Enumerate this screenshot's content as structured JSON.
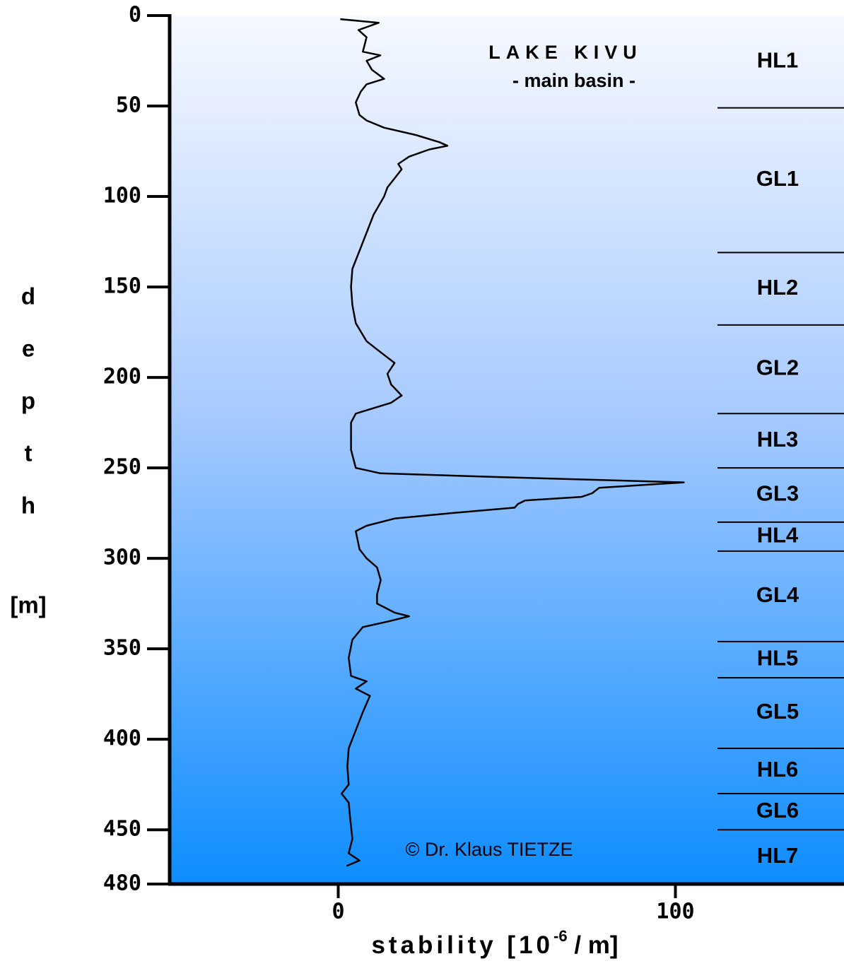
{
  "chart_data": {
    "type": "line",
    "title": "LAKE KIVU",
    "subtitle": "- main basin -",
    "copyright": "© Dr. Klaus TIETZE",
    "y_label": [
      "d",
      "e",
      "p",
      "t",
      "h",
      "[m]"
    ],
    "x_label": {
      "text": "stability [10",
      "sup": "-6",
      "tail": " / m]"
    },
    "ylim": [
      0,
      480
    ],
    "yticks": [
      0,
      50,
      100,
      150,
      200,
      250,
      300,
      350,
      400,
      450,
      480
    ],
    "xlim": [
      -50,
      150
    ],
    "xticks": [
      0,
      100
    ],
    "y_inverted": true,
    "color": "#000000",
    "y": [
      2,
      4,
      8,
      12,
      20,
      22,
      25,
      30,
      35,
      38,
      42,
      48,
      55,
      58,
      62,
      66,
      70,
      72,
      74,
      78,
      82,
      85,
      90,
      95,
      100,
      110,
      120,
      130,
      140,
      150,
      160,
      170,
      180,
      186,
      192,
      198,
      204,
      210,
      214,
      220,
      225,
      240,
      250,
      253,
      255,
      258,
      261,
      264,
      266,
      268,
      270,
      272,
      275,
      278,
      282,
      285,
      295,
      300,
      305,
      312,
      320,
      325,
      330,
      332,
      335,
      338,
      345,
      355,
      365,
      368,
      372,
      376,
      385,
      395,
      405,
      415,
      425,
      430,
      435,
      445,
      455,
      463,
      467,
      470
    ],
    "values": [
      0.6,
      12,
      6,
      8.4,
      7.3,
      12.5,
      8.4,
      10,
      13.6,
      8.4,
      6.7,
      5.2,
      6.3,
      8.4,
      13.6,
      23,
      30,
      32.4,
      27,
      21,
      17.8,
      18.8,
      16.7,
      14.6,
      13.6,
      10.5,
      8.4,
      6.3,
      4.2,
      3.8,
      4.2,
      5.2,
      8.4,
      12.5,
      16.7,
      14.6,
      15.7,
      18.8,
      15.7,
      5.2,
      3.8,
      3.8,
      5.2,
      12.5,
      46,
      102.5,
      77.4,
      75.3,
      72.2,
      55.4,
      53.3,
      52.3,
      33.5,
      16.7,
      8.4,
      5.2,
      6.3,
      8.4,
      11.5,
      12.6,
      11.5,
      11.5,
      16.7,
      21,
      14.6,
      7.3,
      4.2,
      3.1,
      3.8,
      8.4,
      5.2,
      9.4,
      7.3,
      5.2,
      3.1,
      2.7,
      3.1,
      1,
      3.1,
      3.6,
      4.2,
      3.1,
      6.3,
      2.5
    ],
    "layers": [
      "HL1",
      "GL1",
      "HL2",
      "GL2",
      "HL3",
      "GL3",
      "HL4",
      "GL4",
      "HL5",
      "GL5",
      "HL6",
      "GL6",
      "HL7"
    ],
    "layer_boundaries": [
      51,
      131,
      171,
      220,
      250,
      280,
      296,
      346,
      366,
      405,
      430,
      450
    ]
  }
}
